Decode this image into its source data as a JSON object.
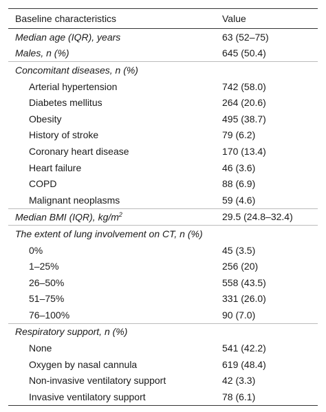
{
  "table": {
    "header": [
      "Baseline characteristics",
      "Value"
    ],
    "sections": [
      {
        "rows": [
          {
            "label": "Median age (IQR), years",
            "value": "63 (52–75)",
            "level": 0
          },
          {
            "label": "Males, n (%)",
            "value": "645 (50.4)",
            "level": 0
          }
        ]
      },
      {
        "rows": [
          {
            "label": "Concomitant diseases, n (%)",
            "level": 0
          },
          {
            "label": "Arterial hypertension",
            "value": "742 (58.0)",
            "level": 1
          },
          {
            "label": "Diabetes mellitus",
            "value": "264 (20.6)",
            "level": 1
          },
          {
            "label": "Obesity",
            "value": "495 (38.7)",
            "level": 1
          },
          {
            "label": "History of stroke",
            "value": "79 (6.2)",
            "level": 1
          },
          {
            "label": "Coronary heart disease",
            "value": "170 (13.4)",
            "level": 1
          },
          {
            "label": "Heart failure",
            "value": "46 (3.6)",
            "level": 1
          },
          {
            "label": "COPD",
            "value": "88 (6.9)",
            "level": 1
          },
          {
            "label": "Malignant neoplasms",
            "value": "59 (4.6)",
            "level": 1
          }
        ]
      },
      {
        "rows": [
          {
            "label": "Median BMI (IQR), kg/m",
            "sup": "2",
            "value": "29.5 (24.8–32.4)",
            "level": 0
          }
        ]
      },
      {
        "rows": [
          {
            "label": "The extent of lung involvement on CT, n (%)",
            "level": 0
          },
          {
            "label": "0%",
            "value": "45 (3.5)",
            "level": 1
          },
          {
            "label": "1–25%",
            "value": "256 (20)",
            "level": 1
          },
          {
            "label": "26–50%",
            "value": "558 (43.5)",
            "level": 1
          },
          {
            "label": "51–75%",
            "value": "331 (26.0)",
            "level": 1
          },
          {
            "label": "76–100%",
            "value": "90 (7.0)",
            "level": 1
          }
        ]
      },
      {
        "rows": [
          {
            "label": "Respiratory support, n (%)",
            "level": 0
          },
          {
            "label": "None",
            "value": "541 (42.2)",
            "level": 1
          },
          {
            "label": "Oxygen by nasal cannula",
            "value": "619 (48.4)",
            "level": 1
          },
          {
            "label": "Non-invasive ventilatory support",
            "value": "42 (3.3)",
            "level": 1
          },
          {
            "label": "Invasive ventilatory support",
            "value": "78 (6.1)",
            "level": 1
          }
        ]
      }
    ]
  }
}
